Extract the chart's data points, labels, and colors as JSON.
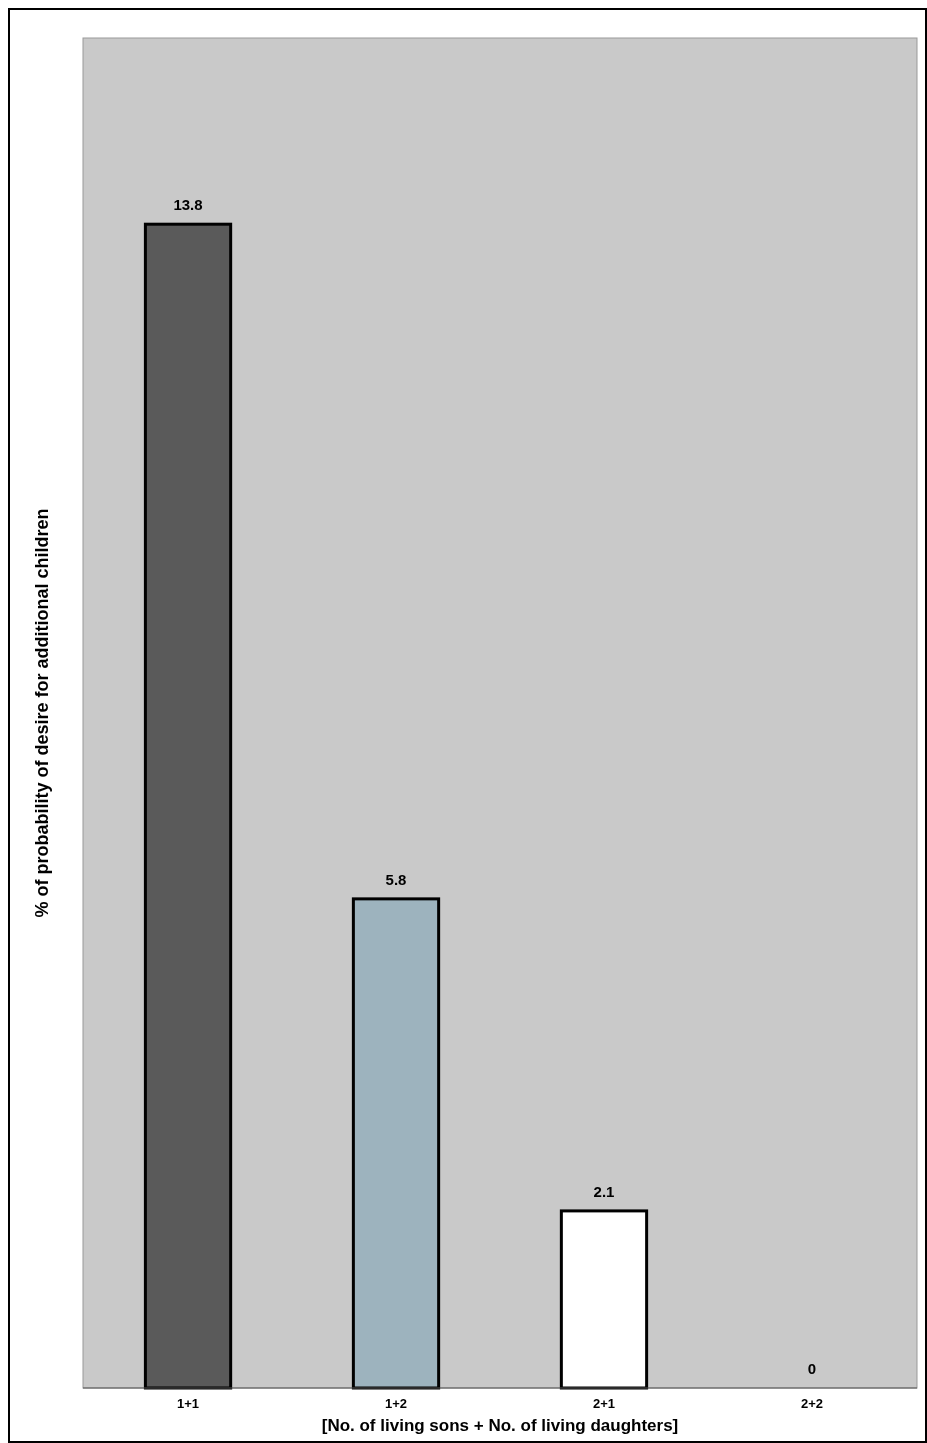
{
  "chart_data": {
    "type": "bar",
    "xlabel": "[No. of living sons + No. of living daughters]",
    "ylabel": "% of probability of desire for additional children",
    "categories": [
      "1+1",
      "1+2",
      "2+1",
      "2+2"
    ],
    "values": [
      13.8,
      5.8,
      2.1,
      0
    ],
    "colors": [
      "#5a5a5a",
      "#9db3be",
      "#ffffff",
      "#ffffff"
    ],
    "data_labels": true
  }
}
